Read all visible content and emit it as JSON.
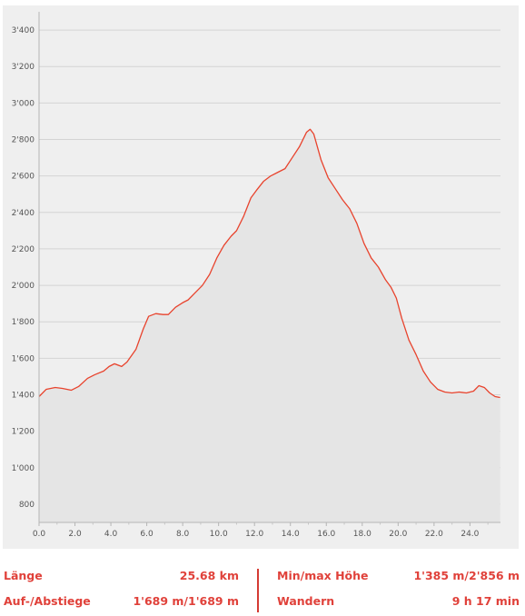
{
  "chart_data": {
    "type": "area",
    "title": "",
    "xlabel": "",
    "ylabel": "",
    "xlim": [
      0,
      25.7
    ],
    "ylim": [
      700,
      3500
    ],
    "x_ticks": [
      "0.0",
      "2.0",
      "4.0",
      "6.0",
      "8.0",
      "10.0",
      "12.0",
      "14.0",
      "16.0",
      "18.0",
      "20.0",
      "22.0",
      "24.0"
    ],
    "y_ticks": [
      "800",
      "1'000",
      "1'200",
      "1'400",
      "1'600",
      "1'800",
      "2'000",
      "2'200",
      "2'400",
      "2'600",
      "2'800",
      "3'000",
      "3'200",
      "3'400"
    ],
    "grid": "horizontal",
    "line_color": "#e8432d",
    "fill_color": "#e5e5e5",
    "series": [
      {
        "x": [
          0.0,
          0.4,
          0.9,
          1.3,
          1.8,
          2.2,
          2.7,
          3.1,
          3.6,
          3.9,
          4.2,
          4.6,
          4.9,
          5.4,
          5.8,
          6.1,
          6.5,
          6.9,
          7.2,
          7.6,
          8.0,
          8.3,
          8.7,
          9.1,
          9.5,
          9.9,
          10.3,
          10.7,
          11.0,
          11.4,
          11.8,
          12.1,
          12.5,
          12.9,
          13.3,
          13.7,
          14.1,
          14.5,
          14.9,
          15.1,
          15.3,
          15.7,
          16.1,
          16.5,
          16.9,
          17.3,
          17.7,
          18.1,
          18.5,
          18.9,
          19.3,
          19.6,
          19.9,
          20.2,
          20.6,
          21.0,
          21.4,
          21.8,
          22.2,
          22.6,
          23.0,
          23.4,
          23.8,
          24.2,
          24.5,
          24.8,
          25.1,
          25.4,
          25.68
        ],
        "values": [
          1390,
          1430,
          1440,
          1435,
          1425,
          1445,
          1490,
          1510,
          1530,
          1555,
          1570,
          1555,
          1580,
          1650,
          1760,
          1830,
          1845,
          1840,
          1840,
          1880,
          1905,
          1920,
          1960,
          2000,
          2060,
          2150,
          2220,
          2270,
          2300,
          2380,
          2480,
          2520,
          2570,
          2600,
          2620,
          2640,
          2700,
          2760,
          2840,
          2856,
          2830,
          2690,
          2590,
          2530,
          2470,
          2420,
          2340,
          2230,
          2150,
          2100,
          2030,
          1990,
          1930,
          1820,
          1700,
          1620,
          1530,
          1470,
          1430,
          1415,
          1410,
          1415,
          1410,
          1420,
          1450,
          1440,
          1410,
          1390,
          1385
        ]
      }
    ]
  },
  "stats": {
    "laenge_label": "Länge",
    "laenge_value": "25.68 km",
    "auf_label": "Auf-/Abstiege",
    "auf_value": "1'689 m/1'689 m",
    "minmax_label": "Min/max Höhe",
    "minmax_value": "1'385 m/2'856 m",
    "wandern_label": "Wandern",
    "wandern_value": "9 h 17 min"
  }
}
